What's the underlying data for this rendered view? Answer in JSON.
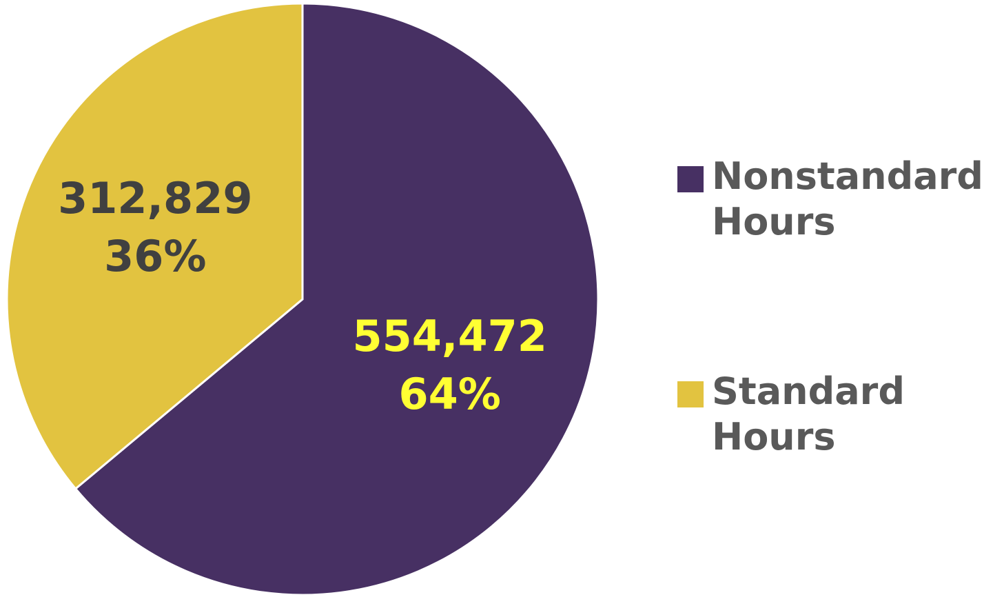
{
  "chart_data": {
    "type": "pie",
    "categories": [
      "Nonstandard Hours",
      "Standard Hours"
    ],
    "values": [
      554472,
      312829
    ],
    "value_labels": [
      "554,472",
      "312,829"
    ],
    "percent_labels": [
      "64%",
      "36%"
    ],
    "colors": [
      "#473063",
      "#E2C340"
    ],
    "label_colors": [
      "#FFFF33",
      "#404040"
    ],
    "legend": "right"
  }
}
